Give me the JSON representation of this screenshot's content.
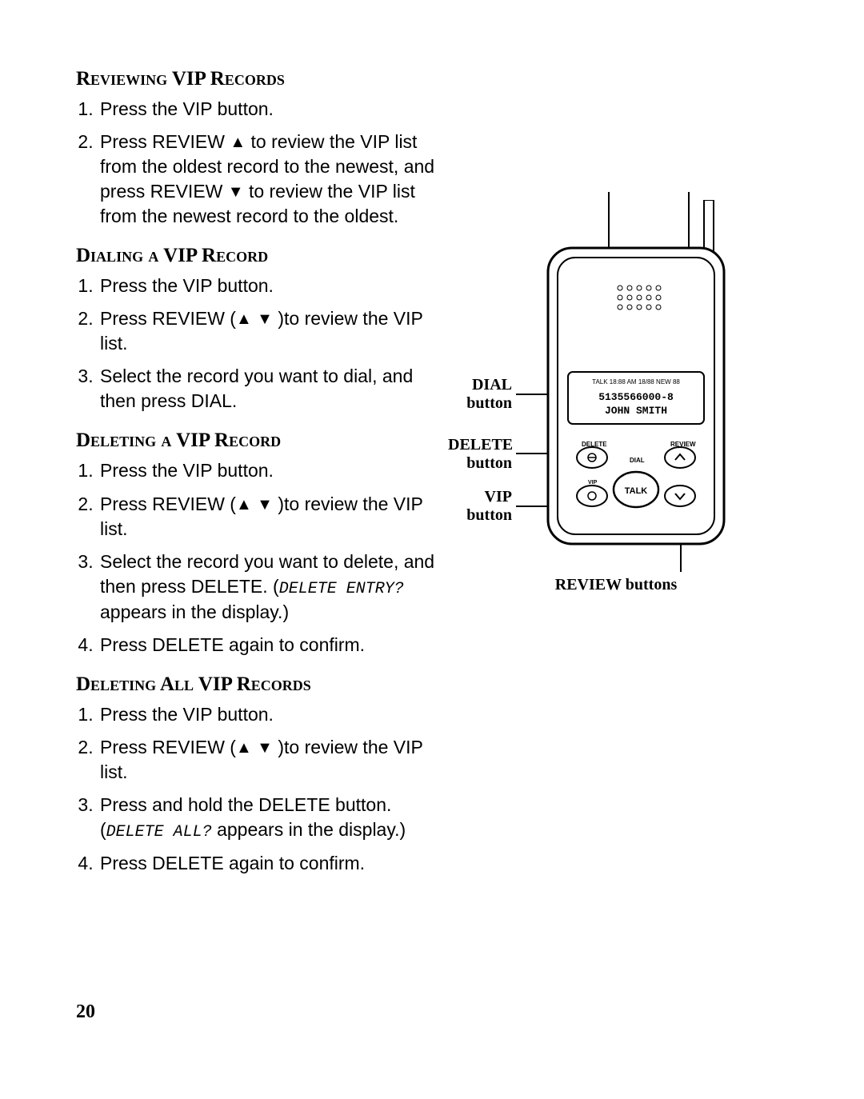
{
  "page_number": "20",
  "sections": [
    {
      "heading": "Reviewing VIP Records",
      "items": [
        "Press the VIP button.",
        "Press REVIEW ▲ to review the VIP list from the oldest record to the newest, and press REVIEW  ▼ to review the VIP list from the newest record to the oldest."
      ]
    },
    {
      "heading": "Dialing a VIP Record",
      "items": [
        "Press the VIP button.",
        "Press REVIEW (▲ ▼ )to review the VIP list.",
        "Select the record you want to dial, and then press DIAL."
      ]
    },
    {
      "heading": "Deleting a VIP Record",
      "items": [
        "Press the VIP button.",
        "Press REVIEW (▲ ▼ )to review the VIP list.",
        "Select the record you want to delete, and then press DELETE. (<span class='lcd'>DELETE ENTRY?</span> appears in the display.)",
        "Press DELETE again to confirm."
      ]
    },
    {
      "heading": "Deleting All VIP Records",
      "items": [
        "Press the VIP button.",
        "Press REVIEW (▲ ▼ )to review the VIP list.",
        "Press and hold the DELETE button. (<span class='lcd'>DELETE ALL?</span> appears in the display.)",
        "Press DELETE again to confirm."
      ]
    }
  ],
  "figure": {
    "labels": {
      "dial": "DIAL\nbutton",
      "delete": "DELETE\nbutton",
      "vip": "VIP\nbutton",
      "review": "REVIEW buttons"
    },
    "display": {
      "top_line": "TALK 18:88 AM 18/88 NEW 88",
      "number": "5135566000-8",
      "name": "JOHN SMITH"
    },
    "buttons": {
      "delete_text": "DELETE",
      "review_text": "REVIEW",
      "dial_text": "DIAL",
      "vip_text": "VIP",
      "talk_text": "TALK"
    }
  }
}
